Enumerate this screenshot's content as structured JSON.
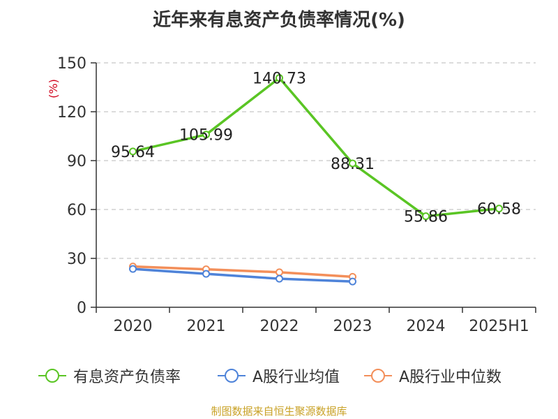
{
  "chart_data": {
    "type": "line",
    "title": "近年来有息资产负债率情况(%)",
    "ylabel": "(%)",
    "xlabel": "",
    "categories": [
      "2020",
      "2021",
      "2022",
      "2023",
      "2024",
      "2025H1"
    ],
    "ylim": [
      0,
      150
    ],
    "yticks": [
      0,
      30,
      60,
      90,
      120,
      150
    ],
    "grid": true,
    "legend_position": "bottom",
    "series": [
      {
        "name": "有息资产负债率",
        "color": "#5ac524",
        "values": [
          95.64,
          105.99,
          140.73,
          88.31,
          55.86,
          60.58
        ],
        "show_labels": true
      },
      {
        "name": "A股行业均值",
        "color": "#4e83d9",
        "values": [
          23.5,
          20.5,
          17.5,
          15.8,
          null,
          null
        ],
        "show_labels": false
      },
      {
        "name": "A股行业中位数",
        "color": "#f38f5a",
        "values": [
          25.0,
          23.3,
          21.5,
          18.7,
          null,
          null
        ],
        "show_labels": false
      }
    ]
  },
  "source": "制图数据来自恒生聚源数据库"
}
